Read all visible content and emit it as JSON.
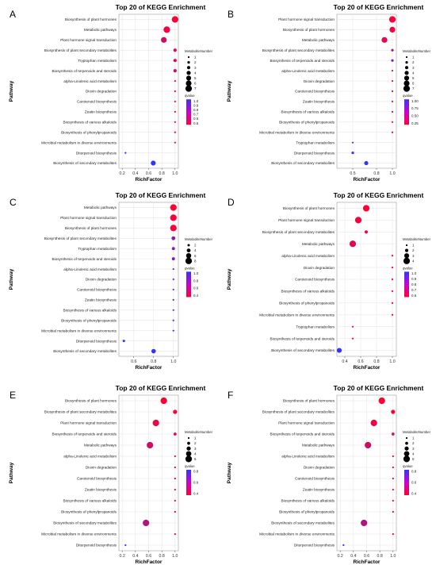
{
  "figure": {
    "colors": {
      "low": "#ff0033",
      "high": "#3333ff",
      "grid": "#e6e6e6",
      "frame": "#888888"
    }
  },
  "chart_data": [
    {
      "panel": "A",
      "type": "scatter",
      "title": "Top 20 of KEGG Enrichment",
      "xlabel": "RichFactor",
      "ylabel": "Pathway",
      "xlim": [
        0.15,
        1.05
      ],
      "xticks": [
        "0.2",
        "0.4",
        "0.6",
        "0.8",
        "1.0"
      ],
      "xtick_values": [
        0.2,
        0.4,
        0.6,
        0.8,
        1.0
      ],
      "grid": true,
      "size_legend_title": "MetaboliteNumber",
      "size_legend": [
        1,
        2,
        3,
        4,
        5,
        6,
        7
      ],
      "size_range": [
        1,
        7
      ],
      "color_legend_title": "qvalue",
      "color_legend": [
        "1.0",
        "0.9",
        "0.8",
        "0.7",
        "0.6",
        "0.5"
      ],
      "color_range": [
        0.5,
        1.0
      ],
      "points": [
        {
          "pathway": "Biosynthesis of plant hormones",
          "x": 1.0,
          "count": 7,
          "q": 0.5
        },
        {
          "pathway": "Metabolic pathways",
          "x": 0.875,
          "count": 7,
          "q": 0.53
        },
        {
          "pathway": "Plant hormone signal transduction",
          "x": 0.83,
          "count": 6,
          "q": 0.62
        },
        {
          "pathway": "Biosynthesis of plant secondary metabolites",
          "x": 1.0,
          "count": 3,
          "q": 0.6
        },
        {
          "pathway": "Tryptophan metabolism",
          "x": 1.0,
          "count": 3,
          "q": 0.62
        },
        {
          "pathway": "Biosynthesis of terpenoids and steroids",
          "x": 1.0,
          "count": 3,
          "q": 0.62
        },
        {
          "pathway": "alpha-Linolenic acid metabolism",
          "x": 1.0,
          "count": 1,
          "q": 0.55
        },
        {
          "pathway": "Dioxin degradation",
          "x": 1.0,
          "count": 1,
          "q": 0.55
        },
        {
          "pathway": "Carotenoid biosynthesis",
          "x": 1.0,
          "count": 1,
          "q": 0.55
        },
        {
          "pathway": "Zeatin biosynthesis",
          "x": 1.0,
          "count": 1,
          "q": 0.55
        },
        {
          "pathway": "Biosynthesis of various alkaloids",
          "x": 1.0,
          "count": 1,
          "q": 0.55
        },
        {
          "pathway": "Biosynthesis of phenylpropanoids",
          "x": 1.0,
          "count": 1,
          "q": 0.55
        },
        {
          "pathway": "Microbial metabolism in diverse environments",
          "x": 1.0,
          "count": 1,
          "q": 0.55
        },
        {
          "pathway": "Diterpenoid biosynthesis",
          "x": 0.25,
          "count": 1,
          "q": 0.98
        },
        {
          "pathway": "Biosynthesis of secondary metabolites",
          "x": 0.67,
          "count": 5,
          "q": 1.0
        }
      ]
    },
    {
      "panel": "B",
      "type": "scatter",
      "title": "Top 20 of KEGG Enrichment",
      "xlabel": "RichFactor",
      "ylabel": "Pathway",
      "xlim": [
        0.3,
        1.05
      ],
      "xticks": [
        "0.5",
        "0.8",
        "1.0"
      ],
      "xtick_values": [
        0.5,
        0.8,
        1.0
      ],
      "grid": true,
      "size_legend_title": "MetaboliteNumber",
      "size_legend": [
        1,
        2,
        3,
        4,
        5,
        6,
        7
      ],
      "size_range": [
        1,
        7
      ],
      "color_legend_title": "qvalue",
      "color_legend": [
        "1.00",
        "0.75",
        "0.50",
        "0.25"
      ],
      "color_range": [
        0.2,
        1.0
      ],
      "points": [
        {
          "pathway": "Plant hormone signal transduction",
          "x": 1.0,
          "count": 7,
          "q": 0.22
        },
        {
          "pathway": "Biosynthesis of plant hormones",
          "x": 1.0,
          "count": 6,
          "q": 0.25
        },
        {
          "pathway": "Metabolic pathways",
          "x": 0.9,
          "count": 6,
          "q": 0.3
        },
        {
          "pathway": "Biosynthesis of plant secondary metabolites",
          "x": 1.0,
          "count": 2,
          "q": 0.55
        },
        {
          "pathway": "Biosynthesis of terpenoids and steroids",
          "x": 1.0,
          "count": 2,
          "q": 0.7
        },
        {
          "pathway": "alpha-Linolenic acid metabolism",
          "x": 1.0,
          "count": 1,
          "q": 0.45
        },
        {
          "pathway": "Dioxin degradation",
          "x": 1.0,
          "count": 1,
          "q": 0.45
        },
        {
          "pathway": "Carotenoid biosynthesis",
          "x": 1.0,
          "count": 1,
          "q": 0.45
        },
        {
          "pathway": "Zeatin biosynthesis",
          "x": 1.0,
          "count": 1,
          "q": 0.45
        },
        {
          "pathway": "Biosynthesis of various alkaloids",
          "x": 1.0,
          "count": 1,
          "q": 0.45
        },
        {
          "pathway": "Biosynthesis of phenylpropanoids",
          "x": 1.0,
          "count": 1,
          "q": 0.45
        },
        {
          "pathway": "Microbial metabolism in diverse environments",
          "x": 1.0,
          "count": 1,
          "q": 0.45
        },
        {
          "pathway": "Tryptophan metabolism",
          "x": 0.5,
          "count": 1,
          "q": 0.98
        },
        {
          "pathway": "Diterpenoid biosynthesis",
          "x": 0.5,
          "count": 2,
          "q": 0.98
        },
        {
          "pathway": "Biosynthesis of secondary metabolites",
          "x": 0.67,
          "count": 4,
          "q": 1.0
        }
      ]
    },
    {
      "panel": "C",
      "type": "scatter",
      "title": "Top 20 of KEGG Enrichment",
      "xlabel": "RichFactor",
      "ylabel": "Pathway",
      "xlim": [
        0.45,
        1.05
      ],
      "xticks": [
        "0.6",
        "0.8",
        "1.0"
      ],
      "xtick_values": [
        0.6,
        0.8,
        1.0
      ],
      "grid": true,
      "size_legend_title": "MetaboliteNumber",
      "size_legend": [
        2,
        4,
        6,
        8
      ],
      "size_range": [
        1,
        8
      ],
      "color_legend_title": "qvalue",
      "color_legend": [
        "1.0",
        "0.8",
        "0.6",
        "0.4"
      ],
      "color_range": [
        0.35,
        1.0
      ],
      "points": [
        {
          "pathway": "Metabolic pathways",
          "x": 1.0,
          "count": 8,
          "q": 0.35
        },
        {
          "pathway": "Plant hormone signal transduction",
          "x": 1.0,
          "count": 8,
          "q": 0.37
        },
        {
          "pathway": "Biosynthesis of plant hormones",
          "x": 1.0,
          "count": 8,
          "q": 0.38
        },
        {
          "pathway": "Biosynthesis of plant secondary metabolites",
          "x": 1.0,
          "count": 4,
          "q": 0.75
        },
        {
          "pathway": "Tryptophan metabolism",
          "x": 1.0,
          "count": 3,
          "q": 0.78
        },
        {
          "pathway": "Biosynthesis of terpenoids and steroids",
          "x": 1.0,
          "count": 3,
          "q": 0.78
        },
        {
          "pathway": "alpha-Linolenic acid metabolism",
          "x": 1.0,
          "count": 1,
          "q": 0.8
        },
        {
          "pathway": "Dioxin degradation",
          "x": 1.0,
          "count": 1,
          "q": 0.8
        },
        {
          "pathway": "Carotenoid biosynthesis",
          "x": 1.0,
          "count": 1,
          "q": 0.8
        },
        {
          "pathway": "Zeatin biosynthesis",
          "x": 1.0,
          "count": 1,
          "q": 0.8
        },
        {
          "pathway": "Biosynthesis of various alkaloids",
          "x": 1.0,
          "count": 1,
          "q": 0.8
        },
        {
          "pathway": "Biosynthesis of phenylpropanoids",
          "x": 1.0,
          "count": 1,
          "q": 0.8
        },
        {
          "pathway": "Microbial metabolism in diverse environments",
          "x": 1.0,
          "count": 1,
          "q": 0.8
        },
        {
          "pathway": "Diterpenoid biosynthesis",
          "x": 0.5,
          "count": 2,
          "q": 1.0
        },
        {
          "pathway": "Biosynthesis of secondary metabolites",
          "x": 0.8,
          "count": 5,
          "q": 1.0
        }
      ]
    },
    {
      "panel": "D",
      "type": "scatter",
      "title": "Top 20 of KEGG Enrichment",
      "xlabel": "RichFactor",
      "ylabel": "Pathway",
      "xlim": [
        0.3,
        1.05
      ],
      "xticks": [
        "0.4",
        "0.6",
        "0.8",
        "1.0"
      ],
      "xtick_values": [
        0.4,
        0.6,
        0.8,
        1.0
      ],
      "grid": true,
      "size_legend_title": "MetaboliteNumber",
      "size_legend": [
        1,
        2,
        3,
        4
      ],
      "size_range": [
        1,
        4
      ],
      "color_legend_title": "qvalue",
      "color_legend": [
        "1.0",
        "0.9",
        "0.8",
        "0.7",
        "0.6"
      ],
      "color_range": [
        0.55,
        1.0
      ],
      "points": [
        {
          "pathway": "Biosynthesis of plant hormones",
          "x": 0.67,
          "count": 4,
          "q": 0.55
        },
        {
          "pathway": "Plant hormone signal transduction",
          "x": 0.57,
          "count": 4,
          "q": 0.57
        },
        {
          "pathway": "Biosynthesis of plant secondary metabolites",
          "x": 0.67,
          "count": 2,
          "q": 0.6
        },
        {
          "pathway": "Metabolic pathways",
          "x": 0.5,
          "count": 4,
          "q": 0.62
        },
        {
          "pathway": "alpha-Linolenic acid metabolism",
          "x": 1.0,
          "count": 1,
          "q": 0.6
        },
        {
          "pathway": "Dioxin degradation",
          "x": 1.0,
          "count": 1,
          "q": 0.6
        },
        {
          "pathway": "Carotenoid biosynthesis",
          "x": 1.0,
          "count": 1,
          "q": 0.6
        },
        {
          "pathway": "Biosynthesis of various alkaloids",
          "x": 1.0,
          "count": 1,
          "q": 0.6
        },
        {
          "pathway": "Biosynthesis of phenylpropanoids",
          "x": 1.0,
          "count": 1,
          "q": 0.6
        },
        {
          "pathway": "Microbial metabolism in diverse environments",
          "x": 1.0,
          "count": 1,
          "q": 0.6
        },
        {
          "pathway": "Tryptophan metabolism",
          "x": 0.5,
          "count": 1,
          "q": 0.6
        },
        {
          "pathway": "Biosynthesis of terpenoids and steroids",
          "x": 0.5,
          "count": 1,
          "q": 0.6
        },
        {
          "pathway": "Biosynthesis of secondary metabolites",
          "x": 0.33,
          "count": 3,
          "q": 1.0
        }
      ]
    },
    {
      "panel": "E",
      "type": "scatter",
      "title": "Top 20 of KEGG Enrichment",
      "xlabel": "RichFactor",
      "ylabel": "Pathway",
      "xlim": [
        0.15,
        1.05
      ],
      "xticks": [
        "0.2",
        "0.4",
        "0.6",
        "0.8",
        "1.0"
      ],
      "xtick_values": [
        0.2,
        0.4,
        0.6,
        0.8,
        1.0
      ],
      "grid": true,
      "size_legend_title": "MetaboliteNumber",
      "size_legend": [
        1,
        2,
        3,
        4,
        5
      ],
      "size_range": [
        1,
        5
      ],
      "color_legend_title": "qvalue",
      "color_legend": [
        "0.8",
        "0.6",
        "0.4"
      ],
      "color_range": [
        0.3,
        0.95
      ],
      "points": [
        {
          "pathway": "Biosynthesis of plant hormones",
          "x": 0.83,
          "count": 5,
          "q": 0.3
        },
        {
          "pathway": "Biosynthesis of plant secondary metabolites",
          "x": 1.0,
          "count": 3,
          "q": 0.32
        },
        {
          "pathway": "Plant hormone signal transduction",
          "x": 0.71,
          "count": 5,
          "q": 0.35
        },
        {
          "pathway": "Biosynthesis of terpenoids and steroids",
          "x": 1.0,
          "count": 2,
          "q": 0.38
        },
        {
          "pathway": "Metabolic pathways",
          "x": 0.62,
          "count": 5,
          "q": 0.45
        },
        {
          "pathway": "alpha-Linolenic acid metabolism",
          "x": 1.0,
          "count": 1,
          "q": 0.42
        },
        {
          "pathway": "Dioxin degradation",
          "x": 1.0,
          "count": 1,
          "q": 0.42
        },
        {
          "pathway": "Carotenoid biosynthesis",
          "x": 1.0,
          "count": 1,
          "q": 0.42
        },
        {
          "pathway": "Zeatin biosynthesis",
          "x": 1.0,
          "count": 1,
          "q": 0.42
        },
        {
          "pathway": "Biosynthesis of various alkaloids",
          "x": 1.0,
          "count": 1,
          "q": 0.42
        },
        {
          "pathway": "Biosynthesis of phenylpropanoids",
          "x": 1.0,
          "count": 1,
          "q": 0.42
        },
        {
          "pathway": "Biosynthesis of secondary metabolites",
          "x": 0.56,
          "count": 5,
          "q": 0.55
        },
        {
          "pathway": "Microbial metabolism in diverse environments",
          "x": 1.0,
          "count": 1,
          "q": 0.42
        },
        {
          "pathway": "Diterpenoid biosynthesis",
          "x": 0.25,
          "count": 1,
          "q": 0.95
        }
      ]
    },
    {
      "panel": "F",
      "type": "scatter",
      "title": "Top 20 of KEGG Enrichment",
      "xlabel": "RichFactor",
      "ylabel": "Pathway",
      "xlim": [
        0.15,
        1.05
      ],
      "xticks": [
        "0.2",
        "0.4",
        "0.6",
        "0.8",
        "1.0"
      ],
      "xtick_values": [
        0.2,
        0.4,
        0.6,
        0.8,
        1.0
      ],
      "grid": true,
      "size_legend_title": "MetaboliteNumber",
      "size_legend": [
        1,
        2,
        3,
        4,
        5
      ],
      "size_range": [
        1,
        5
      ],
      "color_legend_title": "qvalue",
      "color_legend": [
        "0.8",
        "0.6",
        "0.4"
      ],
      "color_range": [
        0.3,
        0.95
      ],
      "points": [
        {
          "pathway": "Biosynthesis of plant hormones",
          "x": 0.83,
          "count": 5,
          "q": 0.3
        },
        {
          "pathway": "Biosynthesis of plant secondary metabolites",
          "x": 1.0,
          "count": 3,
          "q": 0.32
        },
        {
          "pathway": "Plant hormone signal transduction",
          "x": 0.71,
          "count": 5,
          "q": 0.35
        },
        {
          "pathway": "Biosynthesis of terpenoids and steroids",
          "x": 1.0,
          "count": 2,
          "q": 0.38
        },
        {
          "pathway": "Metabolic pathways",
          "x": 0.62,
          "count": 5,
          "q": 0.45
        },
        {
          "pathway": "alpha-Linolenic acid metabolism",
          "x": 1.0,
          "count": 1,
          "q": 0.42
        },
        {
          "pathway": "Dioxin degradation",
          "x": 1.0,
          "count": 1,
          "q": 0.42
        },
        {
          "pathway": "Carotenoid biosynthesis",
          "x": 1.0,
          "count": 1,
          "q": 0.42
        },
        {
          "pathway": "Zeatin biosynthesis",
          "x": 1.0,
          "count": 1,
          "q": 0.42
        },
        {
          "pathway": "Biosynthesis of various alkaloids",
          "x": 1.0,
          "count": 1,
          "q": 0.42
        },
        {
          "pathway": "Biosynthesis of phenylpropanoids",
          "x": 1.0,
          "count": 1,
          "q": 0.42
        },
        {
          "pathway": "Biosynthesis of secondary metabolites",
          "x": 0.56,
          "count": 5,
          "q": 0.55
        },
        {
          "pathway": "Microbial metabolism in diverse environments",
          "x": 1.0,
          "count": 1,
          "q": 0.42
        },
        {
          "pathway": "Diterpenoid biosynthesis",
          "x": 0.25,
          "count": 1,
          "q": 0.95
        }
      ]
    }
  ]
}
